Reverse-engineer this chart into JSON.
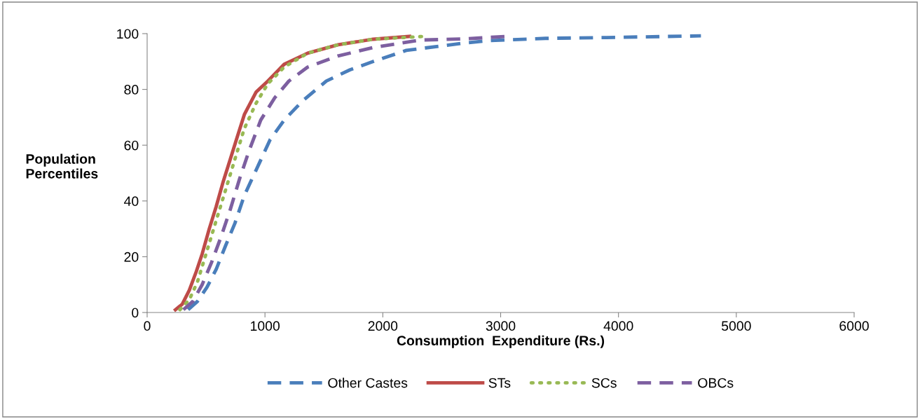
{
  "chart_data": {
    "type": "line",
    "xlabel": "Consumption  Expenditure (Rs.)",
    "ylabel": "Population\nPercentiles",
    "xlim": [
      0,
      6000
    ],
    "xticks": [
      0,
      1000,
      2000,
      3000,
      4000,
      5000,
      6000
    ],
    "ylim": [
      0,
      100
    ],
    "yticks": [
      0,
      20,
      40,
      60,
      80,
      100
    ],
    "grid": false,
    "legend": "bottom",
    "marker": "none",
    "series": [
      {
        "name": "Other Castes",
        "color": "#4a7ebb",
        "line_style": "dashed",
        "x": [
          348,
          427,
          507,
          586,
          666,
          745,
          825,
          924,
          1044,
          1163,
          1322,
          1521,
          1720,
          1918,
          2200,
          2667,
          2905,
          3381,
          3897,
          4700
        ],
        "values": [
          1,
          4,
          9,
          15.5,
          24,
          32,
          42,
          51,
          62,
          69,
          76,
          83,
          87,
          90,
          94,
          96.5,
          97.5,
          98.3,
          98.6,
          99.2
        ]
      },
      {
        "name": "STs",
        "color": "#be4b48",
        "line_style": "solid",
        "x": [
          240,
          298,
          358,
          417,
          467,
          527,
          586,
          646,
          706,
          765,
          825,
          924,
          1024,
          1163,
          1362,
          1620,
          1918,
          2227
        ],
        "values": [
          1,
          3,
          8,
          14.7,
          21,
          30,
          38,
          47,
          55,
          63,
          71,
          79,
          83,
          89,
          93,
          96,
          98,
          99
        ]
      },
      {
        "name": "SCs",
        "color": "#98b954",
        "line_style": "dotted",
        "x": [
          278,
          358,
          427,
          507,
          586,
          666,
          745,
          825,
          924,
          1024,
          1163,
          1362,
          1620,
          1918,
          2345
        ],
        "values": [
          1,
          4.6,
          11,
          22,
          33,
          44,
          55,
          66,
          75,
          82,
          88,
          93,
          96,
          98,
          99
        ]
      },
      {
        "name": "OBCs",
        "color": "#7d5fa0",
        "line_style": "dashed",
        "x": [
          308,
          388,
          467,
          547,
          626,
          706,
          785,
          865,
          964,
          1083,
          1203,
          1362,
          1620,
          1918,
          2316,
          2677,
          3054
        ],
        "values": [
          1,
          4,
          10,
          18,
          27,
          37,
          48,
          58,
          69,
          77,
          83,
          88,
          92,
          95,
          97.7,
          98.1,
          99
        ]
      }
    ]
  }
}
